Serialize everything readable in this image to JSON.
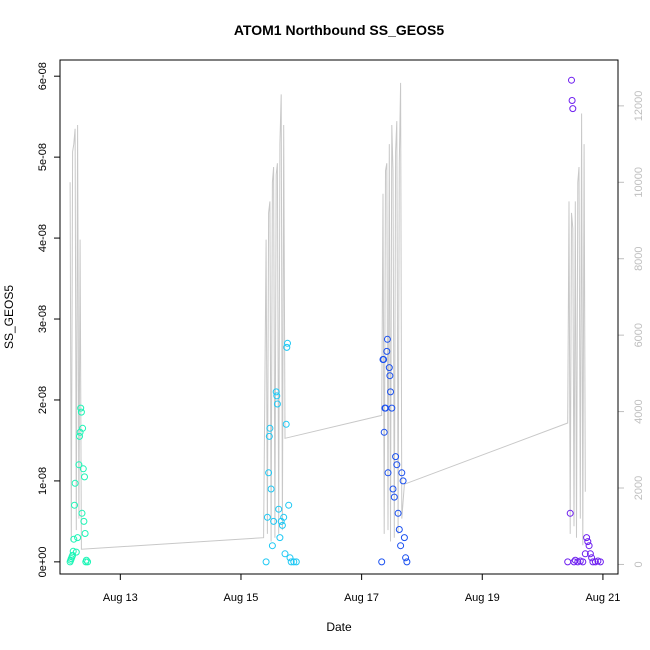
{
  "chart_data": {
    "type": "scatter",
    "title": "ATOM1 Northbound SS_GEOS5",
    "xlabel": "Date",
    "ylabel": "SS_GEOS5",
    "x_ticks": [
      "Aug 13",
      "Aug 15",
      "Aug 17",
      "Aug 19",
      "Aug 21"
    ],
    "x_tick_dates": [
      "2016-08-13",
      "2016-08-15",
      "2016-08-17",
      "2016-08-19",
      "2016-08-21"
    ],
    "xlim": [
      "2016-08-12 00:00",
      "2016-08-21 06:00"
    ],
    "y_ticks": [
      "0e+00",
      "1e-08",
      "2e-08",
      "3e-08",
      "4e-08",
      "5e-08",
      "6e-08"
    ],
    "y_tick_values": [
      0,
      1e-08,
      2e-08,
      3e-08,
      4e-08,
      5e-08,
      6e-08
    ],
    "ylim": [
      -1.5e-09,
      6.2e-08
    ],
    "y2_ticks": [
      "0",
      "2000",
      "4000",
      "6000",
      "8000",
      "10000",
      "12000"
    ],
    "y2_tick_values": [
      0,
      2000,
      4000,
      6000,
      8000,
      10000,
      12000
    ],
    "y2lim": [
      -250,
      13200
    ],
    "grid": false,
    "series": [
      {
        "color": "#1cf5b6",
        "points": [
          [
            "2016-08-12 04:00",
            0
          ],
          [
            "2016-08-12 04:15",
            2e-10
          ],
          [
            "2016-08-12 04:30",
            4e-10
          ],
          [
            "2016-08-12 04:45",
            6e-10
          ],
          [
            "2016-08-12 05:00",
            8e-10
          ],
          [
            "2016-08-12 05:15",
            1.3e-09
          ],
          [
            "2016-08-12 05:30",
            2.8e-09
          ],
          [
            "2016-08-12 05:45",
            7e-09
          ],
          [
            "2016-08-12 06:00",
            9.7e-09
          ],
          [
            "2016-08-12 06:30",
            1.2e-09
          ],
          [
            "2016-08-12 07:00",
            3e-09
          ],
          [
            "2016-08-12 07:30",
            1.2e-08
          ],
          [
            "2016-08-12 07:45",
            1.55e-08
          ],
          [
            "2016-08-12 08:00",
            1.6e-08
          ],
          [
            "2016-08-12 08:15",
            1.9e-08
          ],
          [
            "2016-08-12 08:30",
            1.85e-08
          ],
          [
            "2016-08-12 08:45",
            6e-09
          ],
          [
            "2016-08-12 09:00",
            1.65e-08
          ],
          [
            "2016-08-12 09:15",
            1.15e-08
          ],
          [
            "2016-08-12 09:30",
            5e-09
          ],
          [
            "2016-08-12 09:45",
            1.05e-08
          ],
          [
            "2016-08-12 10:00",
            3.5e-09
          ],
          [
            "2016-08-12 10:15",
            0
          ],
          [
            "2016-08-12 10:30",
            2e-10
          ],
          [
            "2016-08-12 11:00",
            0
          ]
        ]
      },
      {
        "color": "#1ec8f4",
        "points": [
          [
            "2016-08-15 10:00",
            0
          ],
          [
            "2016-08-15 10:30",
            5.5e-09
          ],
          [
            "2016-08-15 11:00",
            1.1e-08
          ],
          [
            "2016-08-15 11:15",
            1.55e-08
          ],
          [
            "2016-08-15 11:30",
            1.65e-08
          ],
          [
            "2016-08-15 12:00",
            9e-09
          ],
          [
            "2016-08-15 12:30",
            2e-09
          ],
          [
            "2016-08-15 13:00",
            5e-09
          ],
          [
            "2016-08-15 14:00",
            2.1e-08
          ],
          [
            "2016-08-15 14:15",
            2.05e-08
          ],
          [
            "2016-08-15 14:30",
            1.95e-08
          ],
          [
            "2016-08-15 15:00",
            6.5e-09
          ],
          [
            "2016-08-15 15:30",
            3e-09
          ],
          [
            "2016-08-15 16:00",
            5e-09
          ],
          [
            "2016-08-15 16:30",
            4.5e-09
          ],
          [
            "2016-08-15 17:00",
            5.5e-09
          ],
          [
            "2016-08-15 17:30",
            1e-09
          ],
          [
            "2016-08-15 18:00",
            1.7e-08
          ],
          [
            "2016-08-15 18:15",
            2.65e-08
          ],
          [
            "2016-08-15 18:30",
            2.7e-08
          ],
          [
            "2016-08-15 19:00",
            7e-09
          ],
          [
            "2016-08-15 19:30",
            5e-10
          ],
          [
            "2016-08-15 20:00",
            0
          ],
          [
            "2016-08-15 21:00",
            0
          ],
          [
            "2016-08-15 22:00",
            0
          ]
        ]
      },
      {
        "color": "#1a50f0",
        "points": [
          [
            "2016-08-17 08:00",
            0
          ],
          [
            "2016-08-17 08:30",
            2.5e-08
          ],
          [
            "2016-08-17 08:45",
            2.5e-08
          ],
          [
            "2016-08-17 09:00",
            1.6e-08
          ],
          [
            "2016-08-17 09:15",
            1.9e-08
          ],
          [
            "2016-08-17 09:30",
            1.9e-08
          ],
          [
            "2016-08-17 10:00",
            2.6e-08
          ],
          [
            "2016-08-17 10:15",
            2.75e-08
          ],
          [
            "2016-08-17 10:30",
            1.1e-08
          ],
          [
            "2016-08-17 11:00",
            2.4e-08
          ],
          [
            "2016-08-17 11:15",
            2.3e-08
          ],
          [
            "2016-08-17 11:30",
            2.1e-08
          ],
          [
            "2016-08-17 12:00",
            1.9e-08
          ],
          [
            "2016-08-17 12:30",
            9e-09
          ],
          [
            "2016-08-17 13:00",
            8e-09
          ],
          [
            "2016-08-17 13:30",
            1.3e-08
          ],
          [
            "2016-08-17 14:00",
            1.2e-08
          ],
          [
            "2016-08-17 14:30",
            6e-09
          ],
          [
            "2016-08-17 15:00",
            4e-09
          ],
          [
            "2016-08-17 15:30",
            2e-09
          ],
          [
            "2016-08-17 16:00",
            1.1e-08
          ],
          [
            "2016-08-17 16:30",
            1e-08
          ],
          [
            "2016-08-17 17:00",
            3e-09
          ],
          [
            "2016-08-17 17:30",
            5e-10
          ],
          [
            "2016-08-17 18:00",
            0
          ]
        ]
      },
      {
        "color": "#6e1ff0",
        "points": [
          [
            "2016-08-20 10:00",
            0
          ],
          [
            "2016-08-20 11:00",
            6e-09
          ],
          [
            "2016-08-20 11:30",
            5.95e-08
          ],
          [
            "2016-08-20 11:45",
            5.7e-08
          ],
          [
            "2016-08-20 12:00",
            5.6e-08
          ],
          [
            "2016-08-20 12:30",
            0
          ],
          [
            "2016-08-20 13:00",
            2e-10
          ],
          [
            "2016-08-20 14:00",
            0
          ],
          [
            "2016-08-20 15:00",
            1e-10
          ],
          [
            "2016-08-20 16:00",
            0
          ],
          [
            "2016-08-20 17:00",
            1e-09
          ],
          [
            "2016-08-20 17:30",
            3e-09
          ],
          [
            "2016-08-20 18:00",
            2.5e-09
          ],
          [
            "2016-08-20 18:30",
            2e-09
          ],
          [
            "2016-08-20 19:00",
            1e-09
          ],
          [
            "2016-08-20 19:30",
            5e-10
          ],
          [
            "2016-08-20 20:00",
            0
          ],
          [
            "2016-08-20 21:00",
            0
          ],
          [
            "2016-08-20 22:00",
            1e-10
          ],
          [
            "2016-08-20 23:00",
            0
          ]
        ]
      }
    ],
    "secondary_line": {
      "color": "#c8c8c8",
      "axis": "right",
      "points": [
        [
          "2016-08-12 04:00",
          10000
        ],
        [
          "2016-08-12 04:30",
          600
        ],
        [
          "2016-08-12 05:00",
          10800
        ],
        [
          "2016-08-12 05:30",
          11000
        ],
        [
          "2016-08-12 06:00",
          11400
        ],
        [
          "2016-08-12 06:30",
          900
        ],
        [
          "2016-08-12 07:00",
          11500
        ],
        [
          "2016-08-12 07:30",
          1200
        ],
        [
          "2016-08-12 08:00",
          8500
        ],
        [
          "2016-08-12 08:30",
          400
        ],
        [
          "2016-08-15 09:00",
          700
        ],
        [
          "2016-08-15 10:00",
          8500
        ],
        [
          "2016-08-15 10:30",
          800
        ],
        [
          "2016-08-15 11:00",
          9200
        ],
        [
          "2016-08-15 11:30",
          9500
        ],
        [
          "2016-08-15 12:00",
          600
        ],
        [
          "2016-08-15 12:30",
          10000
        ],
        [
          "2016-08-15 13:00",
          10400
        ],
        [
          "2016-08-15 13:30",
          700
        ],
        [
          "2016-08-15 14:00",
          10200
        ],
        [
          "2016-08-15 14:30",
          10500
        ],
        [
          "2016-08-15 15:00",
          800
        ],
        [
          "2016-08-15 15:30",
          11000
        ],
        [
          "2016-08-15 16:00",
          12300
        ],
        [
          "2016-08-15 16:30",
          900
        ],
        [
          "2016-08-15 17:00",
          11500
        ],
        [
          "2016-08-15 17:30",
          3300
        ],
        [
          "2016-08-17 08:00",
          3900
        ],
        [
          "2016-08-17 08:30",
          9700
        ],
        [
          "2016-08-17 09:00",
          800
        ],
        [
          "2016-08-17 09:30",
          10300
        ],
        [
          "2016-08-17 10:00",
          10500
        ],
        [
          "2016-08-17 10:30",
          900
        ],
        [
          "2016-08-17 11:00",
          11000
        ],
        [
          "2016-08-17 11:30",
          600
        ],
        [
          "2016-08-17 12:00",
          11500
        ],
        [
          "2016-08-17 12:30",
          10300
        ],
        [
          "2016-08-17 13:00",
          700
        ],
        [
          "2016-08-17 13:30",
          10800
        ],
        [
          "2016-08-17 14:00",
          11600
        ],
        [
          "2016-08-17 14:30",
          800
        ],
        [
          "2016-08-17 15:00",
          10500
        ],
        [
          "2016-08-17 15:30",
          12600
        ],
        [
          "2016-08-17 16:00",
          1200
        ],
        [
          "2016-08-17 17:00",
          2100
        ],
        [
          "2016-08-20 10:00",
          3700
        ],
        [
          "2016-08-20 10:30",
          9500
        ],
        [
          "2016-08-20 11:00",
          800
        ],
        [
          "2016-08-20 11:30",
          9200
        ],
        [
          "2016-08-20 12:00",
          8800
        ],
        [
          "2016-08-20 12:30",
          1000
        ],
        [
          "2016-08-20 13:00",
          9500
        ],
        [
          "2016-08-20 13:30",
          700
        ],
        [
          "2016-08-20 14:00",
          10000
        ],
        [
          "2016-08-20 14:30",
          10400
        ],
        [
          "2016-08-20 15:00",
          1200
        ],
        [
          "2016-08-20 15:30",
          11800
        ],
        [
          "2016-08-20 16:00",
          500
        ],
        [
          "2016-08-20 16:30",
          11000
        ],
        [
          "2016-08-20 17:00",
          1900
        ]
      ]
    }
  }
}
